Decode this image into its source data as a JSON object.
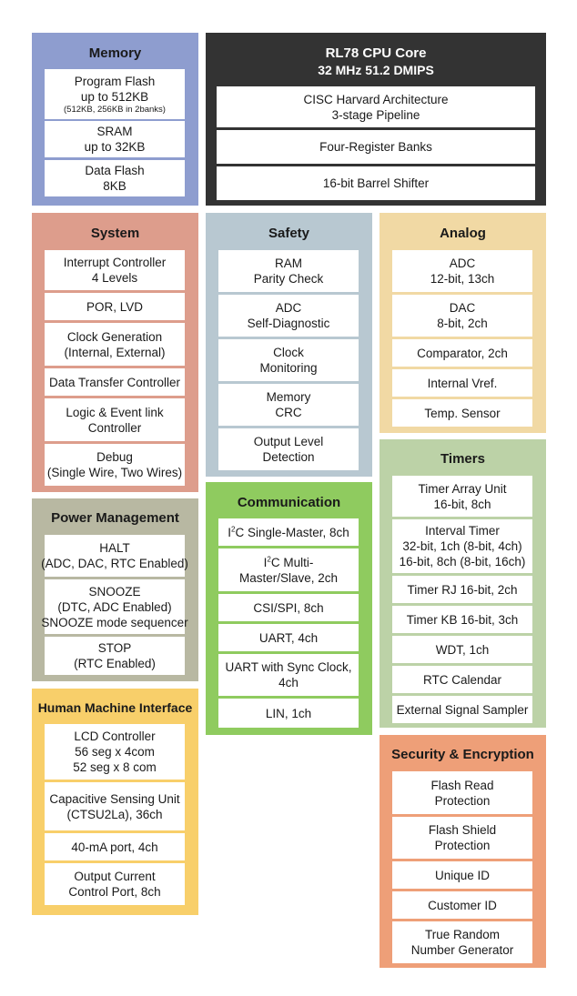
{
  "memory": {
    "title": "Memory",
    "color": "#8e9dcf",
    "items": [
      {
        "lines": [
          "Program Flash",
          "up to 512KB"
        ],
        "note": "(512KB, 256KB in 2banks)"
      },
      {
        "lines": [
          "SRAM",
          "up to 32KB"
        ]
      },
      {
        "lines": [
          "Data Flash",
          "8KB"
        ]
      }
    ]
  },
  "cpu": {
    "title": "RL78 CPU Core",
    "subtitle": "32 MHz 51.2 DMIPS",
    "color": "#333333",
    "items": [
      {
        "lines": [
          "CISC Harvard Architecture",
          "3-stage Pipeline"
        ]
      },
      {
        "lines": [
          "Four-Register Banks"
        ]
      },
      {
        "lines": [
          "16-bit Barrel Shifter"
        ]
      }
    ]
  },
  "system": {
    "title": "System",
    "color": "#dd9d8c",
    "items": [
      {
        "lines": [
          "Interrupt Controller",
          "4 Levels"
        ]
      },
      {
        "lines": [
          "POR, LVD"
        ]
      },
      {
        "lines": [
          "Clock Generation",
          "(Internal, External)"
        ]
      },
      {
        "lines": [
          "Data Transfer Controller"
        ]
      },
      {
        "lines": [
          "Logic & Event link",
          "Controller"
        ]
      },
      {
        "lines": [
          "Debug",
          "(Single Wire, Two Wires)"
        ]
      }
    ]
  },
  "safety": {
    "title": "Safety",
    "color": "#b8c8d1",
    "items": [
      {
        "lines": [
          "RAM",
          "Parity Check"
        ]
      },
      {
        "lines": [
          "ADC",
          "Self-Diagnostic"
        ]
      },
      {
        "lines": [
          "Clock",
          "Monitoring"
        ]
      },
      {
        "lines": [
          "Memory",
          "CRC"
        ]
      },
      {
        "lines": [
          "Output Level",
          "Detection"
        ]
      }
    ]
  },
  "analog": {
    "title": "Analog",
    "color": "#f1d9a4",
    "items": [
      {
        "lines": [
          "ADC",
          "12-bit, 13ch"
        ]
      },
      {
        "lines": [
          "DAC",
          "8-bit, 2ch"
        ]
      },
      {
        "lines": [
          "Comparator, 2ch"
        ]
      },
      {
        "lines": [
          "Internal Vref."
        ]
      },
      {
        "lines": [
          "Temp. Sensor"
        ]
      }
    ]
  },
  "power": {
    "title": "Power Management",
    "color": "#b8b8a2",
    "items": [
      {
        "lines": [
          "HALT",
          "(ADC, DAC, RTC Enabled)"
        ]
      },
      {
        "lines": [
          "SNOOZE",
          "(DTC, ADC Enabled)",
          "SNOOZE mode sequencer"
        ]
      },
      {
        "lines": [
          "STOP",
          "(RTC Enabled)"
        ]
      }
    ]
  },
  "communication": {
    "title": "Communication",
    "color": "#8fcb5f",
    "items": [
      {
        "lines": [
          "I²C Single-Master, 8ch"
        ]
      },
      {
        "lines": [
          "I²C Multi-",
          "Master/Slave, 2ch"
        ]
      },
      {
        "lines": [
          "CSI/SPI,  8ch"
        ]
      },
      {
        "lines": [
          "UART, 4ch"
        ]
      },
      {
        "lines": [
          "UART with Sync Clock,",
          "4ch"
        ]
      },
      {
        "lines": [
          "LIN, 1ch"
        ]
      }
    ]
  },
  "timers": {
    "title": "Timers",
    "color": "#bcd2a7",
    "items": [
      {
        "lines": [
          "Timer Array Unit",
          "16-bit, 8ch"
        ]
      },
      {
        "lines": [
          "Interval Timer",
          "32-bit, 1ch (8-bit, 4ch)",
          "16-bit, 8ch (8-bit, 16ch)"
        ]
      },
      {
        "lines": [
          "Timer RJ 16-bit, 2ch"
        ]
      },
      {
        "lines": [
          "Timer KB 16-bit, 3ch"
        ]
      },
      {
        "lines": [
          "WDT, 1ch"
        ]
      },
      {
        "lines": [
          "RTC Calendar"
        ]
      },
      {
        "lines": [
          "External Signal Sampler"
        ]
      }
    ]
  },
  "hmi": {
    "title": "Human Machine Interface",
    "color": "#f8cf6a",
    "items": [
      {
        "lines": [
          "LCD Controller",
          "56 seg x 4com",
          "52 seg x 8 com"
        ]
      },
      {
        "lines": [
          "Capacitive Sensing Unit",
          "(CTSU2La), 36ch"
        ]
      },
      {
        "lines": [
          "40-mA port, 4ch"
        ]
      },
      {
        "lines": [
          "Output Current",
          "Control Port, 8ch"
        ]
      }
    ]
  },
  "security": {
    "title": "Security & Encryption",
    "color": "#ee9f78",
    "items": [
      {
        "lines": [
          "Flash Read",
          "Protection"
        ]
      },
      {
        "lines": [
          "Flash Shield",
          "Protection"
        ]
      },
      {
        "lines": [
          "Unique ID"
        ]
      },
      {
        "lines": [
          "Customer ID"
        ]
      },
      {
        "lines": [
          "True Random",
          "Number Generator"
        ]
      }
    ]
  }
}
